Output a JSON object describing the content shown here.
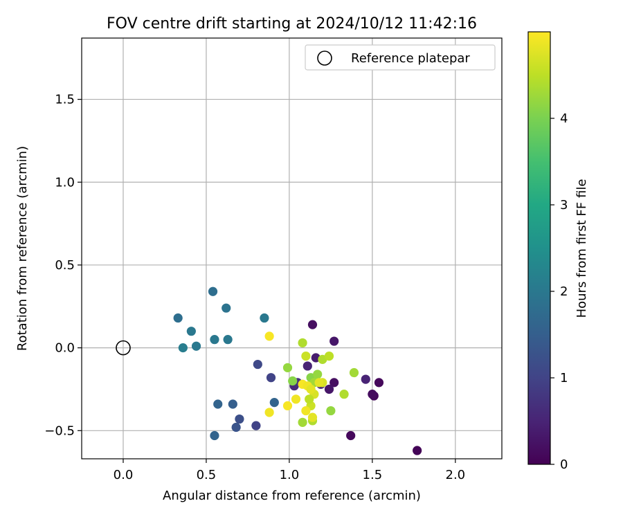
{
  "chart_data": {
    "type": "scatter",
    "title": "FOV centre drift starting at 2024/10/12 11:42:16",
    "xlabel": "Angular distance from reference (arcmin)",
    "ylabel": "Rotation from reference (arcmin)",
    "xlim": [
      -0.25,
      2.28
    ],
    "ylim": [
      -0.67,
      1.87
    ],
    "xticks": [
      0.0,
      0.5,
      1.0,
      1.5,
      2.0
    ],
    "xtick_labels": [
      "0.0",
      "0.5",
      "1.0",
      "1.5",
      "2.0"
    ],
    "yticks": [
      -0.5,
      0.0,
      0.5,
      1.0,
      1.5
    ],
    "ytick_labels": [
      "−0.5",
      "0.0",
      "0.5",
      "1.0",
      "1.5"
    ],
    "grid": true,
    "legend": {
      "position": "top-right",
      "entries": [
        "Reference platepar"
      ]
    },
    "reference_point": {
      "x": 0.0,
      "y": 0.0,
      "marker": "open-circle"
    },
    "colorbar": {
      "label": "Hours from first FF file",
      "colormap": "viridis",
      "range": [
        0,
        5
      ],
      "ticks": [
        0,
        1,
        2,
        3,
        4
      ],
      "tick_labels": [
        "0",
        "1",
        "2",
        "3",
        "4"
      ]
    },
    "points": [
      {
        "x": 1.77,
        "y": -0.62,
        "t": 0.05
      },
      {
        "x": 1.54,
        "y": -0.21,
        "t": 0.1
      },
      {
        "x": 1.51,
        "y": -0.29,
        "t": 0.1
      },
      {
        "x": 1.5,
        "y": -0.28,
        "t": 0.15
      },
      {
        "x": 1.46,
        "y": -0.19,
        "t": 0.5
      },
      {
        "x": 1.37,
        "y": -0.53,
        "t": 0.1
      },
      {
        "x": 1.27,
        "y": 0.04,
        "t": 0.3
      },
      {
        "x": 1.27,
        "y": -0.21,
        "t": 0.2
      },
      {
        "x": 1.24,
        "y": -0.25,
        "t": 0.3
      },
      {
        "x": 1.16,
        "y": -0.06,
        "t": 0.4
      },
      {
        "x": 1.14,
        "y": 0.14,
        "t": 0.2
      },
      {
        "x": 1.11,
        "y": -0.11,
        "t": 0.5
      },
      {
        "x": 1.19,
        "y": -0.22,
        "t": 0.6
      },
      {
        "x": 1.03,
        "y": -0.23,
        "t": 0.6
      },
      {
        "x": 1.05,
        "y": -0.21,
        "t": 0.7
      },
      {
        "x": 0.89,
        "y": -0.18,
        "t": 1.0
      },
      {
        "x": 0.81,
        "y": -0.1,
        "t": 1.1
      },
      {
        "x": 0.8,
        "y": -0.47,
        "t": 1.0
      },
      {
        "x": 0.91,
        "y": -0.33,
        "t": 1.6
      },
      {
        "x": 0.7,
        "y": -0.43,
        "t": 1.2
      },
      {
        "x": 0.68,
        "y": -0.48,
        "t": 1.3
      },
      {
        "x": 0.66,
        "y": -0.34,
        "t": 1.5
      },
      {
        "x": 0.57,
        "y": -0.34,
        "t": 1.6
      },
      {
        "x": 0.55,
        "y": -0.53,
        "t": 1.6
      },
      {
        "x": 0.54,
        "y": 0.34,
        "t": 1.8
      },
      {
        "x": 0.62,
        "y": 0.24,
        "t": 1.9
      },
      {
        "x": 0.55,
        "y": 0.05,
        "t": 2.0
      },
      {
        "x": 0.63,
        "y": 0.05,
        "t": 2.0
      },
      {
        "x": 0.85,
        "y": 0.18,
        "t": 2.0
      },
      {
        "x": 0.33,
        "y": 0.18,
        "t": 1.8
      },
      {
        "x": 0.41,
        "y": 0.1,
        "t": 2.0
      },
      {
        "x": 0.36,
        "y": 0.0,
        "t": 2.1
      },
      {
        "x": 0.44,
        "y": 0.01,
        "t": 2.0
      },
      {
        "x": 1.13,
        "y": -0.18,
        "t": 4.1
      },
      {
        "x": 1.15,
        "y": -0.21,
        "t": 4.3
      },
      {
        "x": 1.17,
        "y": -0.16,
        "t": 4.2
      },
      {
        "x": 1.2,
        "y": -0.07,
        "t": 4.4
      },
      {
        "x": 1.24,
        "y": -0.05,
        "t": 4.5
      },
      {
        "x": 1.1,
        "y": -0.05,
        "t": 4.6
      },
      {
        "x": 0.99,
        "y": -0.12,
        "t": 4.2
      },
      {
        "x": 1.02,
        "y": -0.2,
        "t": 4.1
      },
      {
        "x": 1.08,
        "y": 0.03,
        "t": 4.4
      },
      {
        "x": 1.39,
        "y": -0.15,
        "t": 4.3
      },
      {
        "x": 1.33,
        "y": -0.28,
        "t": 4.4
      },
      {
        "x": 1.25,
        "y": -0.38,
        "t": 4.2
      },
      {
        "x": 1.15,
        "y": -0.28,
        "t": 4.7
      },
      {
        "x": 1.13,
        "y": -0.35,
        "t": 4.6
      },
      {
        "x": 1.12,
        "y": -0.31,
        "t": 4.5
      },
      {
        "x": 1.08,
        "y": -0.45,
        "t": 4.3
      },
      {
        "x": 1.14,
        "y": -0.44,
        "t": 4.4
      },
      {
        "x": 1.14,
        "y": -0.42,
        "t": 4.8
      },
      {
        "x": 1.1,
        "y": -0.38,
        "t": 4.9
      },
      {
        "x": 1.04,
        "y": -0.31,
        "t": 4.9
      },
      {
        "x": 0.99,
        "y": -0.35,
        "t": 4.95
      },
      {
        "x": 0.88,
        "y": -0.39,
        "t": 4.9
      },
      {
        "x": 1.08,
        "y": -0.22,
        "t": 4.95
      },
      {
        "x": 1.11,
        "y": -0.23,
        "t": 4.9
      },
      {
        "x": 1.13,
        "y": -0.25,
        "t": 4.8
      },
      {
        "x": 1.2,
        "y": -0.21,
        "t": 4.7
      },
      {
        "x": 1.18,
        "y": -0.21,
        "t": 4.8
      },
      {
        "x": 0.88,
        "y": 0.07,
        "t": 4.95
      }
    ]
  }
}
